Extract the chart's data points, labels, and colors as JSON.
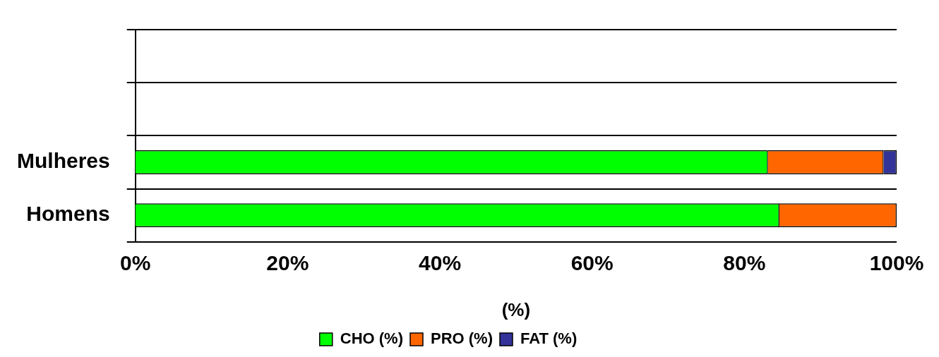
{
  "chart_data": {
    "type": "bar",
    "orientation": "horizontal",
    "stacked": true,
    "xlabel": "(%)",
    "categories": [
      null,
      null,
      "Mulheres",
      "Homens"
    ],
    "series": [
      {
        "name": "CHO (%)",
        "color": "#00ff00",
        "values": [
          null,
          null,
          83.1,
          84.6
        ]
      },
      {
        "name": "PRO (%)",
        "color": "#ff6600",
        "values": [
          null,
          null,
          15.2,
          15.4
        ]
      },
      {
        "name": "FAT (%)",
        "color": "#333399",
        "values": [
          null,
          null,
          1.7,
          null
        ]
      }
    ],
    "xlim": [
      0,
      100
    ],
    "xticks": [
      {
        "value": 0,
        "label": "0%"
      },
      {
        "value": 20,
        "label": "20%"
      },
      {
        "value": 40,
        "label": "40%"
      },
      {
        "value": 60,
        "label": "60%"
      },
      {
        "value": 80,
        "label": "80%"
      },
      {
        "value": 100,
        "label": "100%"
      }
    ],
    "grid": "y",
    "legend": "bottom"
  }
}
